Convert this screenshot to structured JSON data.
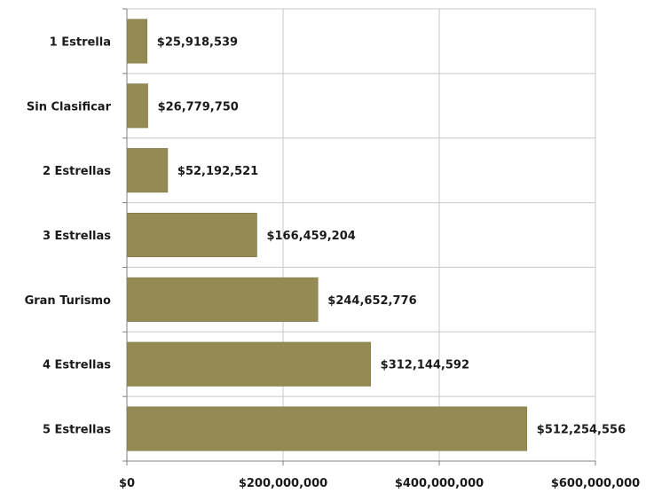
{
  "chart_data": {
    "type": "bar",
    "orientation": "horizontal",
    "categories": [
      "1 Estrella",
      "Sin Clasificar",
      "2 Estrellas",
      "3 Estrellas",
      "Gran Turismo",
      "4 Estrellas",
      "5 Estrellas"
    ],
    "values": [
      25918539,
      26779750,
      52192521,
      166459204,
      244652776,
      312144592,
      512254556
    ],
    "data_labels": [
      "$25,918,539",
      "$26,779,750",
      "$52,192,521",
      "$166,459,204",
      "$244,652,776",
      "$312,144,592",
      "$512,254,556"
    ],
    "xlim": [
      0,
      600000000
    ],
    "x_ticks": [
      0,
      200000000,
      400000000,
      600000000
    ],
    "x_tick_labels": [
      "$0",
      "$200,000,000",
      "$400,000,000",
      "$600,000,000"
    ],
    "grid": true,
    "legend": "none",
    "bar_color": "#948a54",
    "bar_edge_color": "#7a7040",
    "grid_color": "#c8c8c8"
  }
}
